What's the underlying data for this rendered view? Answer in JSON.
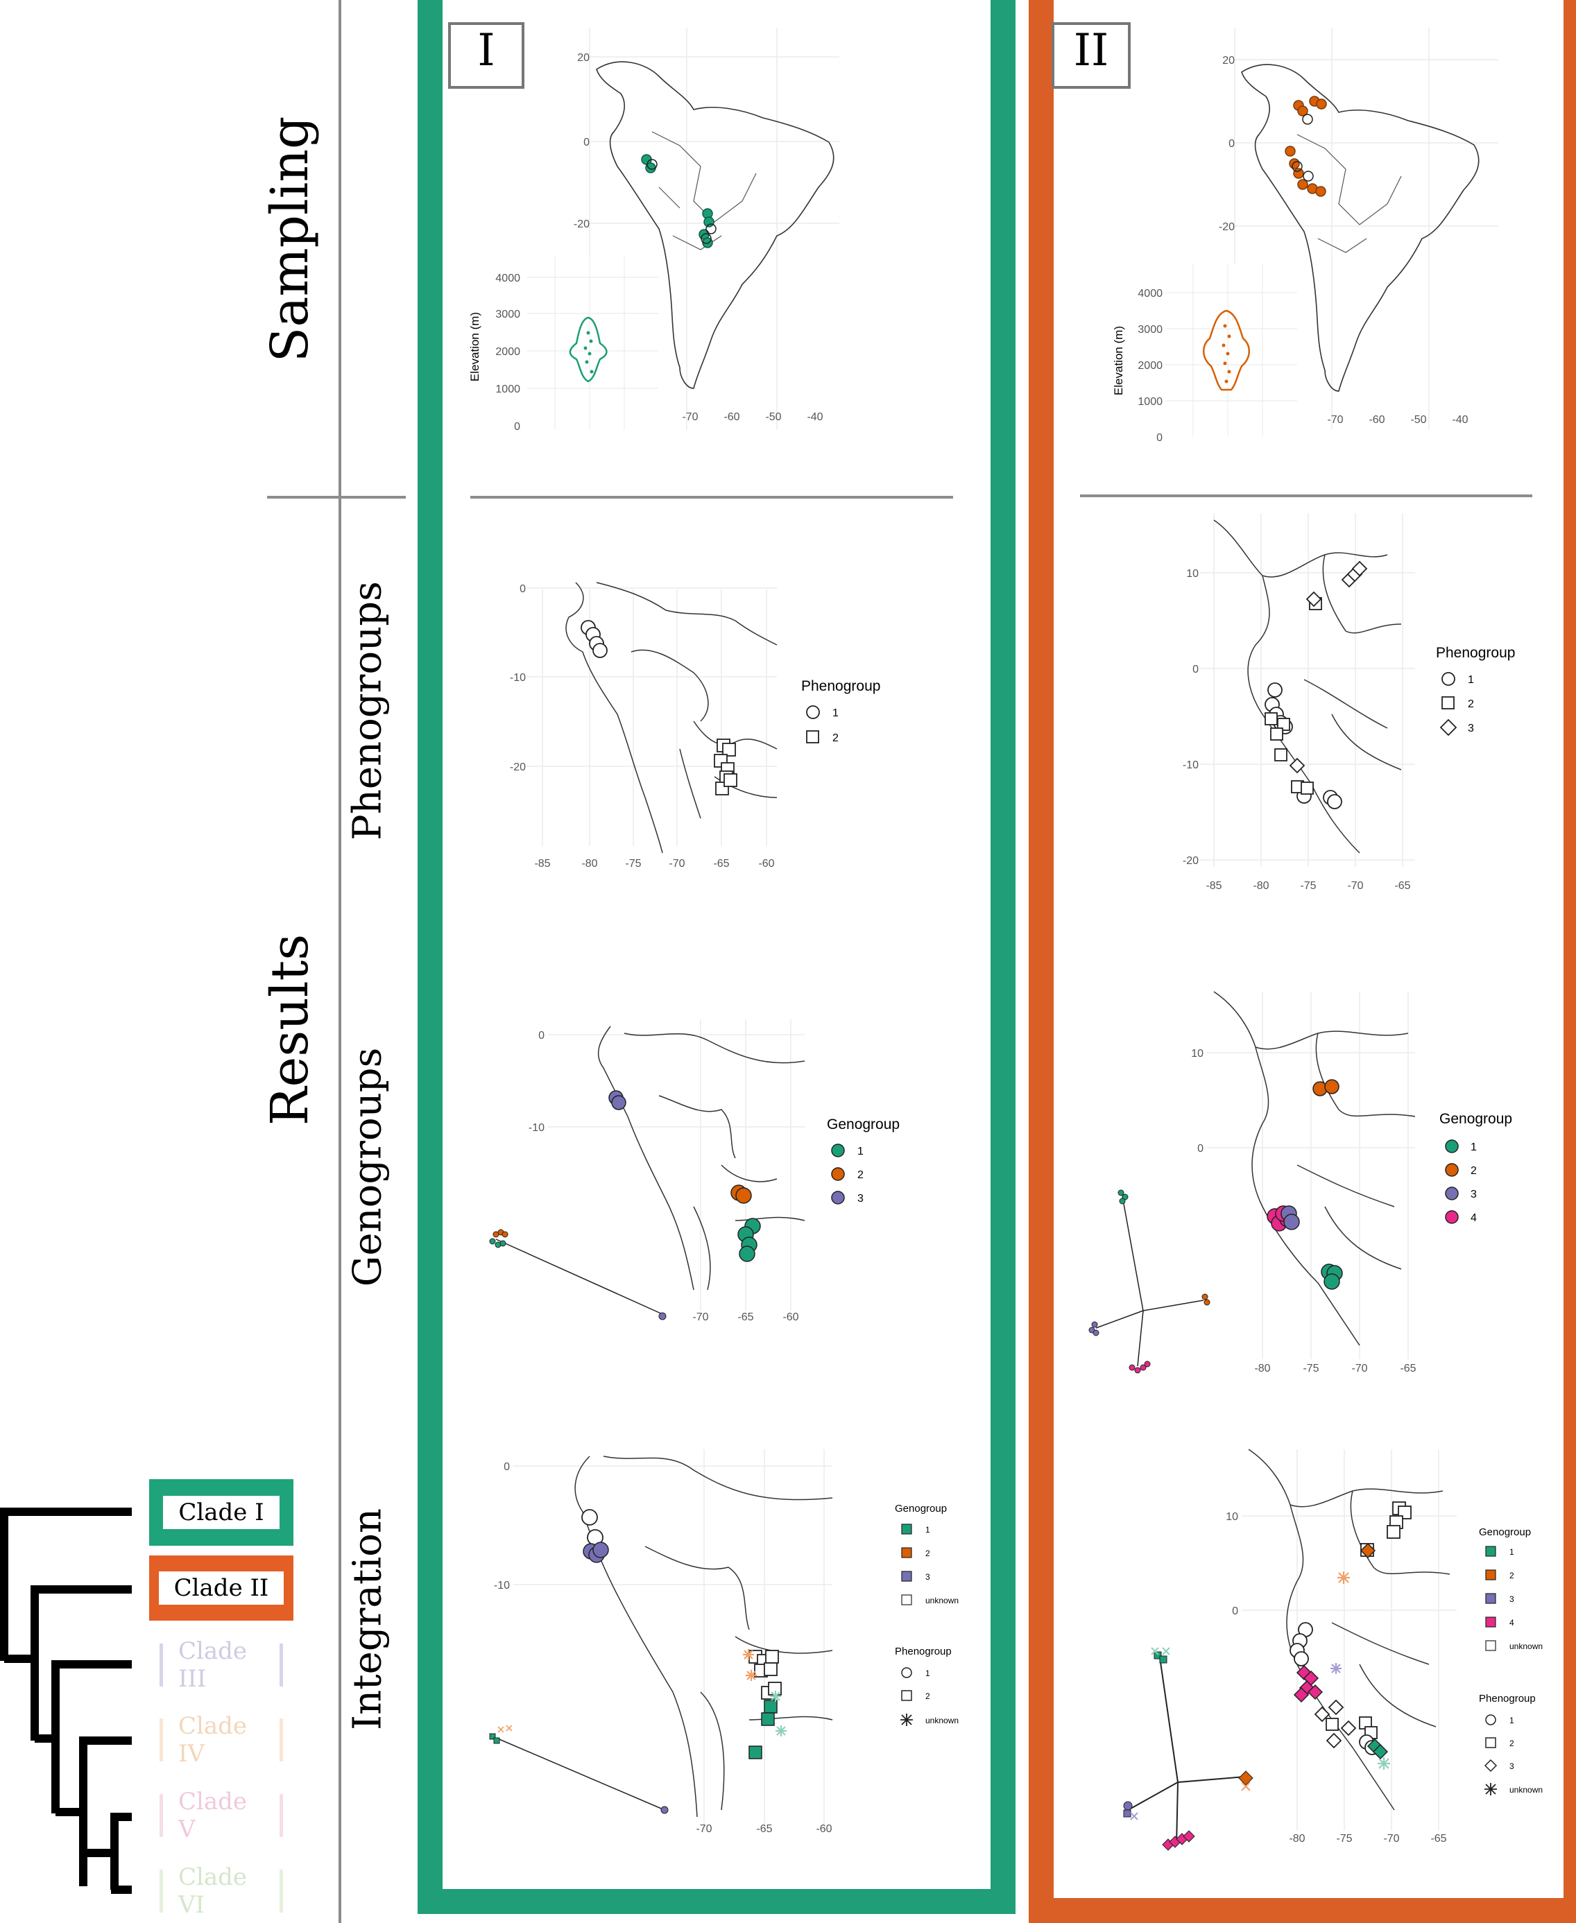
{
  "rows": {
    "sampling": "Sampling",
    "results": "Results",
    "phenogroups": "Phenogroups",
    "genogroups": "Genogroups",
    "integration": "Integration"
  },
  "clades": [
    "Clade I",
    "Clade II",
    "Clade III",
    "Clade IV",
    "Clade V",
    "Clade VI"
  ],
  "clade_colors": [
    "#1fa37a",
    "#e35f25",
    "#c9c4e0",
    "#f6dcc1",
    "#f3cde0",
    "#dcebd3"
  ],
  "panel_colors": {
    "I": "#1f9e77",
    "II": "#d95f27"
  },
  "panels": {
    "I": {
      "numeral": "I",
      "sampling": {
        "lat_ticks": [
          "20",
          "0",
          "-20"
        ],
        "lon_ticks": [
          "-70",
          "-60",
          "-50",
          "-40"
        ],
        "elev_label": "Elevation (m)",
        "elev_ticks": [
          "4000",
          "3000",
          "2000",
          "1000",
          "0"
        ]
      },
      "pheno": {
        "lat_ticks": [
          "0",
          "-10",
          "-20"
        ],
        "lon_ticks": [
          "-85",
          "-80",
          "-75",
          "-70",
          "-65",
          "-60"
        ],
        "legend_title": "Phenogroup",
        "legend": [
          "1",
          "2"
        ]
      },
      "geno": {
        "lat_ticks": [
          "0",
          "-10"
        ],
        "lon_ticks": [
          "-70",
          "-65",
          "-60"
        ],
        "legend_title": "Genogroup",
        "legend": [
          "1",
          "2",
          "3"
        ]
      },
      "integ": {
        "lat_ticks": [
          "0",
          "-10"
        ],
        "lon_ticks": [
          "-70",
          "-65",
          "-60"
        ],
        "geno_title": "Genogroup",
        "geno_legend": [
          "1",
          "2",
          "3",
          "unknown"
        ],
        "pheno_title": "Phenogroup",
        "pheno_legend": [
          "1",
          "2",
          "unknown"
        ]
      }
    },
    "II": {
      "numeral": "II",
      "sampling": {
        "lat_ticks": [
          "20",
          "0",
          "-20"
        ],
        "lon_ticks": [
          "-70",
          "-60",
          "-50",
          "-40"
        ],
        "elev_label": "Elevation (m)",
        "elev_ticks": [
          "4000",
          "3000",
          "2000",
          "1000",
          "0"
        ]
      },
      "pheno": {
        "lat_ticks": [
          "10",
          "0",
          "-10",
          "-20"
        ],
        "lon_ticks": [
          "-85",
          "-80",
          "-75",
          "-70",
          "-65"
        ],
        "legend_title": "Phenogroup",
        "legend": [
          "1",
          "2",
          "3"
        ]
      },
      "geno": {
        "lat_ticks": [
          "10",
          "0"
        ],
        "lon_ticks": [
          "-80",
          "-75",
          "-70",
          "-65"
        ],
        "legend_title": "Genogroup",
        "legend": [
          "1",
          "2",
          "3",
          "4"
        ]
      },
      "integ": {
        "lat_ticks": [
          "10",
          "0"
        ],
        "lon_ticks": [
          "-80",
          "-75",
          "-70",
          "-65"
        ],
        "geno_title": "Genogroup",
        "geno_legend": [
          "1",
          "2",
          "3",
          "4",
          "unknown"
        ],
        "pheno_title": "Phenogroup",
        "pheno_legend": [
          "1",
          "2",
          "3",
          "unknown"
        ]
      }
    }
  },
  "group_colors": {
    "geno1": "#1b9e77",
    "geno2": "#d95f02",
    "geno3": "#7570b3",
    "geno4": "#e7298a"
  }
}
